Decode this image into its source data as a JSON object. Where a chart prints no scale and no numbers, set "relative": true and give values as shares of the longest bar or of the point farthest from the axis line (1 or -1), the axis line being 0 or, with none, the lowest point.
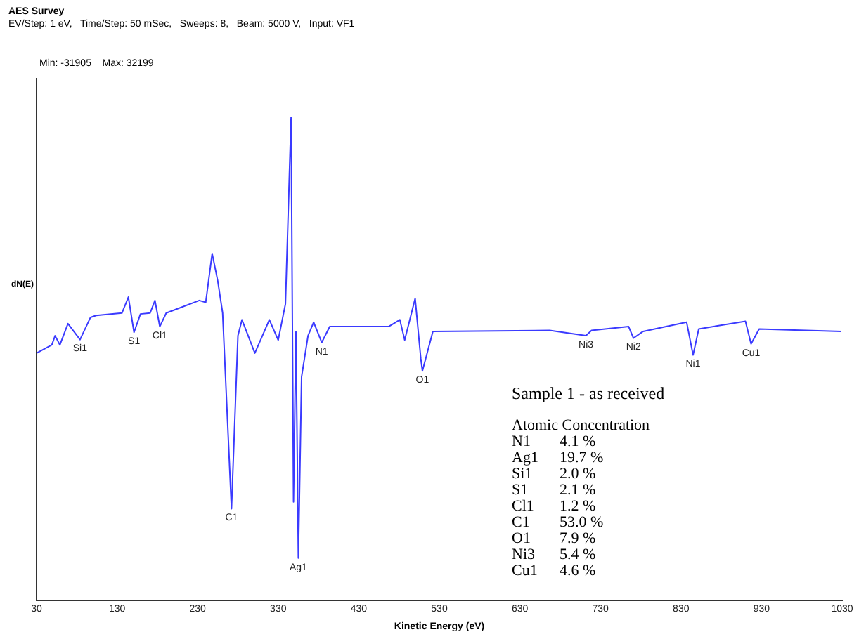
{
  "chart_data": {
    "type": "line",
    "title": "AES Survey",
    "subtitle": "EV/Step: 1 eV,   Time/Step: 50 mSec,   Sweeps: 8,   Beam: 5000 V,   Input: VF1",
    "xlabel": "Kinetic Energy (eV)",
    "ylabel": "dN(E)",
    "relative": true,
    "x": [
      30,
      49,
      53,
      59,
      69,
      84,
      97,
      104,
      136,
      144,
      151,
      159,
      171,
      177,
      183,
      191,
      232,
      240,
      248,
      255,
      261,
      272,
      280,
      285,
      301,
      319,
      330,
      339,
      346,
      349,
      352,
      355,
      359,
      367,
      374,
      384,
      394,
      429,
      467,
      481,
      487,
      500,
      507,
      509,
      522,
      667,
      712,
      719,
      765,
      771,
      783,
      837,
      845,
      852,
      910,
      917,
      927,
      1029
    ],
    "series": [
      {
        "color": "#3a3aff",
        "values": [
          0.512,
          0.529,
          0.548,
          0.529,
          0.573,
          0.54,
          0.586,
          0.59,
          0.595,
          0.628,
          0.555,
          0.593,
          0.595,
          0.621,
          0.567,
          0.595,
          0.621,
          0.617,
          0.718,
          0.661,
          0.595,
          0.19,
          0.548,
          0.581,
          0.512,
          0.581,
          0.539,
          0.614,
          1.0,
          0.204,
          0.556,
          0.088,
          0.463,
          0.548,
          0.576,
          0.534,
          0.567,
          0.567,
          0.567,
          0.581,
          0.539,
          0.625,
          0.501,
          0.475,
          0.557,
          0.559,
          0.548,
          0.559,
          0.567,
          0.543,
          0.557,
          0.576,
          0.508,
          0.562,
          0.578,
          0.531,
          0.562,
          0.557
        ]
      }
    ],
    "xlim": [
      30,
      1030
    ],
    "xticks": [
      30,
      130,
      230,
      330,
      430,
      530,
      630,
      730,
      830,
      930,
      1030
    ],
    "grid": false,
    "legend": false,
    "marker": "none",
    "line_style": "solid",
    "annotations": [
      {
        "text": "Si1",
        "x": 84,
        "y": 0.54
      },
      {
        "text": "S1",
        "x": 151,
        "y": 0.555
      },
      {
        "text": "Cl1",
        "x": 183,
        "y": 0.567
      },
      {
        "text": "C1",
        "x": 272,
        "y": 0.19
      },
      {
        "text": "Ag1",
        "x": 355,
        "y": 0.088
      },
      {
        "text": "N1",
        "x": 384,
        "y": 0.534
      },
      {
        "text": "O1",
        "x": 509,
        "y": 0.475
      },
      {
        "text": "Ni3",
        "x": 712,
        "y": 0.548
      },
      {
        "text": "Ni2",
        "x": 771,
        "y": 0.543
      },
      {
        "text": "Ni1",
        "x": 845,
        "y": 0.508
      },
      {
        "text": "Cu1",
        "x": 917,
        "y": 0.531
      },
      "Min: -31905    Max: 32199",
      "Sample 1 - as received",
      "Atomic Concentration",
      "N1\t4.1 %",
      "Ag1\t19.7 %",
      "Si1\t2.0 %",
      "S1\t2.1 %",
      "Cl1\t1.2 %",
      "C1\t53.0 %",
      "O1\t7.9 %",
      "Ni3\t5.4 %",
      "Cu1\t4.6 %"
    ]
  }
}
